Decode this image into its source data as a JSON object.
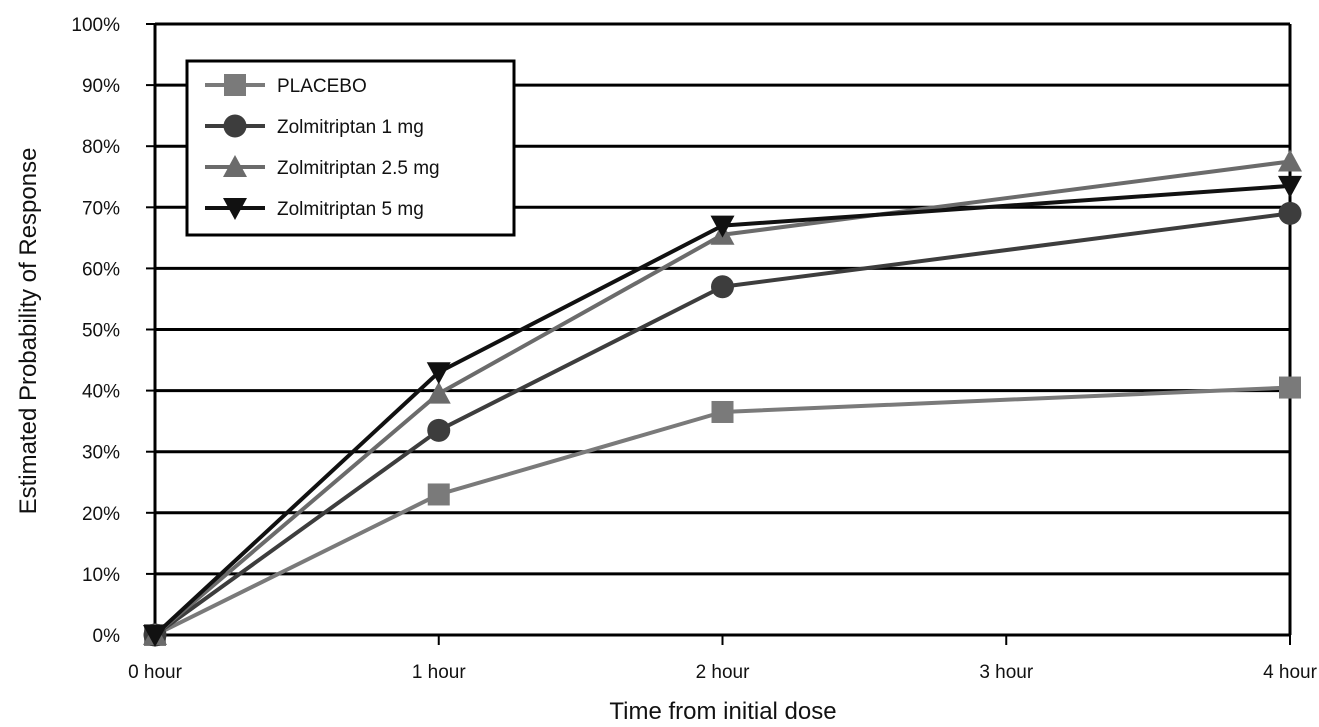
{
  "chart_data": {
    "type": "line",
    "title": "",
    "xlabel": "Time from initial dose",
    "ylabel": "Estimated Probability of Response",
    "categories": [
      "0 hour",
      "1 hour",
      "2 hour",
      "3 hour",
      "4 hour"
    ],
    "ylim": [
      0,
      100
    ],
    "y_ticks": [
      "0%",
      "10%",
      "20%",
      "30%",
      "40%",
      "50%",
      "60%",
      "70%",
      "80%",
      "90%",
      "100%"
    ],
    "y_tick_values": [
      0,
      10,
      20,
      30,
      40,
      50,
      60,
      70,
      80,
      90,
      100
    ],
    "grid": "horizontal",
    "legend_position": "top-left",
    "series": [
      {
        "name": "PLACEBO",
        "marker": "square",
        "color": "#7a7a7a",
        "points": [
          {
            "x": "0 hour",
            "y": 0
          },
          {
            "x": "1 hour",
            "y": 23
          },
          {
            "x": "2 hour",
            "y": 36.5
          },
          {
            "x": "4 hour",
            "y": 40.5
          }
        ]
      },
      {
        "name": "Zolmitriptan 1 mg",
        "marker": "circle",
        "color": "#3d3d3d",
        "points": [
          {
            "x": "0 hour",
            "y": 0
          },
          {
            "x": "1 hour",
            "y": 33.5
          },
          {
            "x": "2 hour",
            "y": 57
          },
          {
            "x": "4 hour",
            "y": 69
          }
        ]
      },
      {
        "name": "Zolmitriptan 2.5 mg",
        "marker": "triangle-up",
        "color": "#6b6b6b",
        "points": [
          {
            "x": "0 hour",
            "y": 0
          },
          {
            "x": "1 hour",
            "y": 39.5
          },
          {
            "x": "2 hour",
            "y": 65.5
          },
          {
            "x": "4 hour",
            "y": 77.5
          }
        ]
      },
      {
        "name": "Zolmitriptan 5 mg",
        "marker": "triangle-down",
        "color": "#111111",
        "points": [
          {
            "x": "0 hour",
            "y": 0
          },
          {
            "x": "1 hour",
            "y": 43
          },
          {
            "x": "2 hour",
            "y": 67
          },
          {
            "x": "4 hour",
            "y": 73.5
          }
        ]
      }
    ]
  }
}
